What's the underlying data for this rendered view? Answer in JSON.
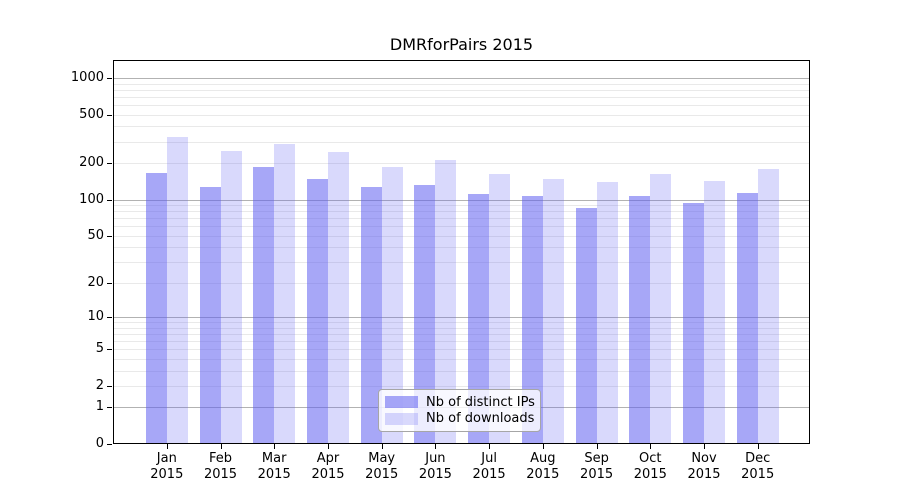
{
  "figure": {
    "background": "#ffffff"
  },
  "chart_data": {
    "type": "bar",
    "title": "DMRforPairs 2015",
    "categories": [
      "Jan",
      "Feb",
      "Mar",
      "Apr",
      "May",
      "Jun",
      "Jul",
      "Aug",
      "Sep",
      "Oct",
      "Nov",
      "Dec"
    ],
    "category_year": "2015",
    "series": [
      {
        "name": "Nb of distinct IPs",
        "color": "rgba(95,95,241,0.55)",
        "values": [
          165,
          127,
          187,
          149,
          128,
          133,
          111,
          106,
          85,
          107,
          93,
          113
        ]
      },
      {
        "name": "Nb of downloads",
        "color": "rgba(95,95,241,0.24)",
        "values": [
          330,
          252,
          286,
          249,
          186,
          210,
          161,
          149,
          140,
          163,
          143,
          177
        ]
      }
    ],
    "xlabel": "",
    "ylabel": "",
    "y_scale": "log(value+1)",
    "y_ticks": [
      0,
      1,
      2,
      5,
      10,
      20,
      50,
      100,
      200,
      500,
      1000
    ],
    "ylim": [
      0,
      1400
    ],
    "grid": true,
    "legend_position": "lower center",
    "colors": {
      "major_grid": "#b2b2b2",
      "minor_grid": "#e9e9e9",
      "axis": "#000000",
      "text": "#000000",
      "legend_border": "#a6a6a6",
      "legend_background": "rgba(255,255,255,0.8)"
    }
  }
}
